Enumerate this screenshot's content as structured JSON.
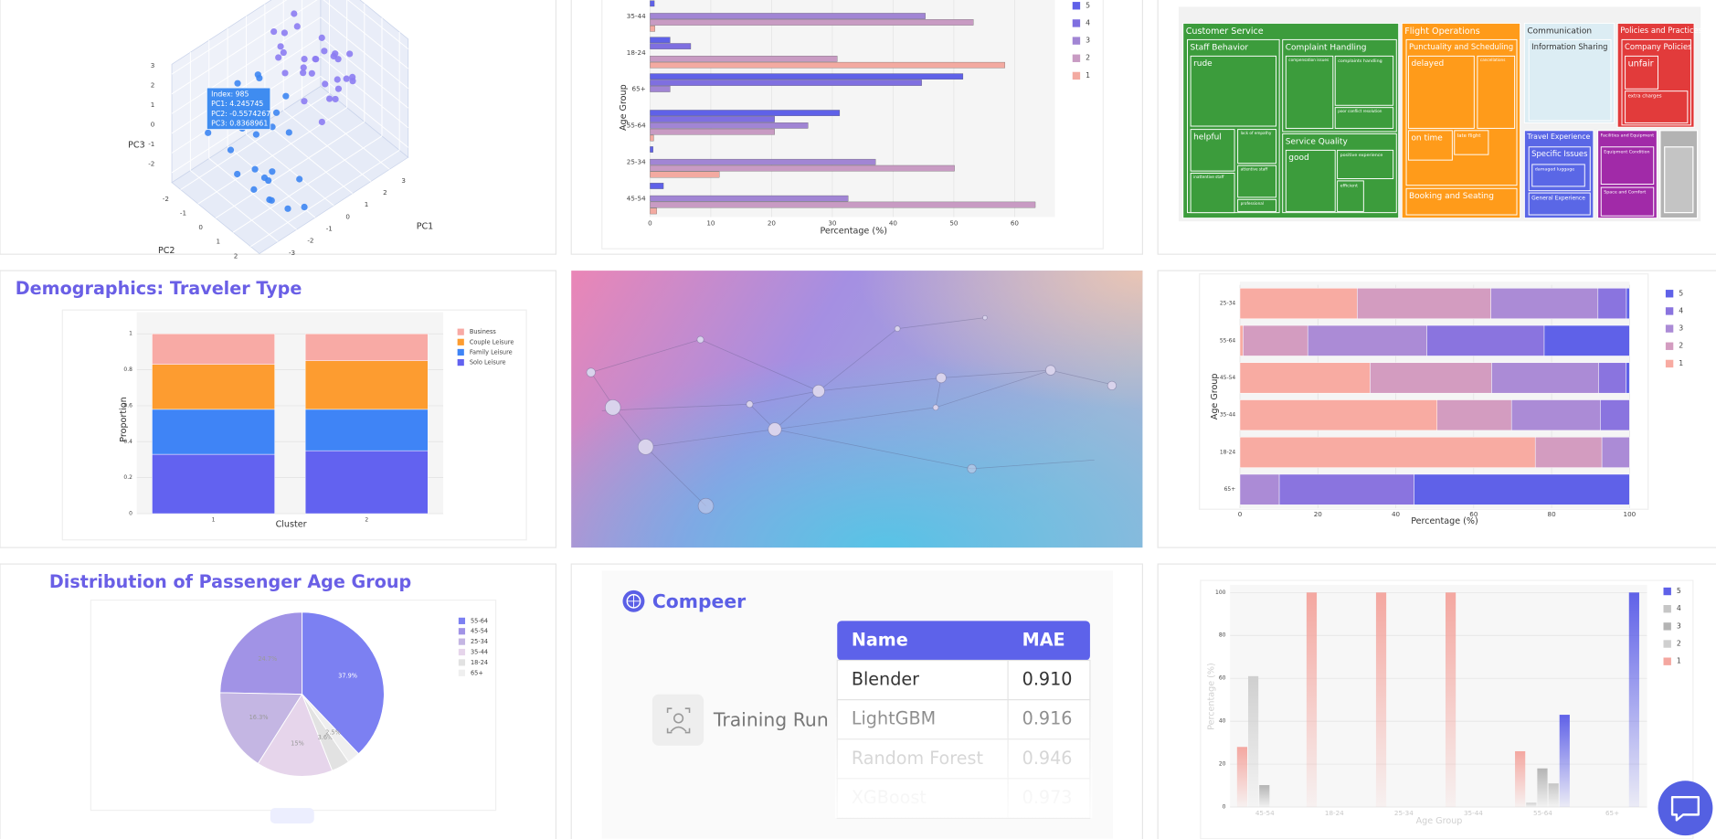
{
  "chart_data": [
    {
      "type": "scatter3d",
      "xlabel": "PC1",
      "ylabel": "PC2",
      "zlabel": "PC3",
      "xlim": [
        -4,
        4
      ],
      "ylim": [
        -2.5,
        2.5
      ],
      "zlim": [
        -2.5,
        3.5
      ],
      "xticks": [
        -3,
        -2,
        -1,
        0,
        1,
        2,
        3
      ],
      "yticks": [
        -2,
        -1,
        0,
        1,
        2
      ],
      "zticks": [
        -2,
        -1,
        0,
        1,
        2,
        3
      ],
      "tooltip": [
        "Index: 985",
        "PC1: 4.245745",
        "PC2: -0.5574267",
        "PC3: 0.8368961"
      ],
      "series": [
        {
          "color": "#3d86f2",
          "x": [
            -2.1,
            -1.8,
            -2.5,
            -1.2,
            -3.0,
            -2.8,
            -1.5,
            -0.9,
            -2.2,
            -1.7,
            -2.6,
            -1.1,
            -3.2,
            -2.0,
            -1.4,
            -0.6,
            -2.9,
            -1.9,
            -2.3,
            -1.0,
            -2.7,
            -1.6,
            -0.8,
            -3.4,
            -2.4,
            -1.3,
            -2.0,
            -1.7,
            -0.5,
            -2.2
          ],
          "y": [
            0.3,
            -0.8,
            1.2,
            0.5,
            -0.2,
            1.8,
            -1.4,
            0.9,
            -1.9,
            0.1,
            0.7,
            -0.5,
            1.4,
            2.0,
            -1.1,
            0.4,
            -1.6,
            1.0,
            -0.3,
            1.6,
            0.2,
            -1.8,
            -0.9,
            0.6,
            1.5,
            2.2,
            -0.6,
            0.8,
            -1.3,
            1.1
          ],
          "z": [
            0.8,
            1.2,
            -0.5,
            1.5,
            0.2,
            -1.0,
            1.8,
            0.6,
            1.0,
            2.1,
            -1.4,
            1.1,
            0.5,
            -1.8,
            1.4,
            1.9,
            0.0,
            -0.7,
            2.4,
            -1.2,
            1.6,
            0.9,
            2.0,
            -0.2,
            -1.5,
            -2.0,
            0.4,
            1.3,
            1.7,
            -0.9
          ]
        },
        {
          "color": "#8c7cf2",
          "x": [
            1.2,
            0.8,
            1.9,
            2.4,
            0.5,
            1.5,
            2.8,
            1.0,
            0.2,
            2.1,
            1.7,
            3.1,
            0.6,
            1.3,
            2.6,
            1.9,
            0.9,
            2.3,
            1.4,
            0.3,
            2.9,
            1.1,
            1.8,
            2.5,
            0.7,
            1.6,
            3.3,
            2.0,
            1.2,
            0.4
          ],
          "y": [
            -0.5,
            0.4,
            -1.2,
            0.2,
            -0.9,
            1.0,
            -0.4,
            -1.6,
            0.6,
            -2.0,
            0.9,
            -0.8,
            -1.3,
            0.1,
            0.8,
            -0.2,
            1.3,
            -1.0,
            -1.8,
            -0.6,
            0.5,
            1.6,
            -1.5,
            -0.7,
            0.0,
            0.3,
            -0.1,
            1.1,
            -2.2,
            1.4
          ],
          "z": [
            1.6,
            2.2,
            1.1,
            1.8,
            2.5,
            0.9,
            1.4,
            2.0,
            1.3,
            2.7,
            1.7,
            0.8,
            1.9,
            2.4,
            1.2,
            2.9,
            1.5,
            1.0,
            2.3,
            1.8,
            0.6,
            2.1,
            2.6,
            1.5,
            2.0,
            1.1,
            1.3,
            1.7,
            2.2,
            0.7
          ]
        }
      ]
    },
    {
      "type": "bar",
      "orientation": "h",
      "barmode": "group",
      "grid": true,
      "xlabel": "Percentage (%)",
      "ylabel": "Age Group",
      "categories": [
        "35-44",
        "18-24",
        "65+",
        "55-64",
        "25-34",
        "45-54"
      ],
      "xlim": [
        0,
        67
      ],
      "xticks": [
        0,
        10,
        20,
        30,
        40,
        50,
        60
      ],
      "series": [
        {
          "name": "5",
          "color": "#5f61e8",
          "values": [
            0.7,
            3.3,
            51.5,
            31.2,
            0.5,
            2.2
          ]
        },
        {
          "name": "4",
          "color": "#7f6fe0",
          "values": [
            0,
            6.7,
            44.7,
            20.5,
            0,
            0
          ]
        },
        {
          "name": "3",
          "color": "#a185d4",
          "values": [
            45.3,
            0,
            3.3,
            26,
            37.1,
            32.6
          ]
        },
        {
          "name": "2",
          "color": "#c89bc3",
          "values": [
            53.2,
            30.8,
            0,
            20.5,
            50.1,
            63.4
          ]
        },
        {
          "name": "1",
          "color": "#f3aaa1",
          "values": [
            0.8,
            58.4,
            0,
            0.6,
            11.4,
            1.1
          ]
        }
      ]
    },
    {
      "type": "bar",
      "orientation": "v",
      "barmode": "stack",
      "grid": true,
      "title": "Demographics: Traveler Type",
      "xlabel": "Cluster",
      "ylabel": "Proportion",
      "categories": [
        "1",
        "2"
      ],
      "ylim": [
        0,
        1.12
      ],
      "yticks": [
        0,
        0.2,
        0.4,
        0.6,
        0.8,
        1
      ],
      "series": [
        {
          "name": "Business",
          "color": "#f8aaa5",
          "values": [
            0.17,
            0.15
          ]
        },
        {
          "name": "Couple Leisure",
          "color": "#fd9c30",
          "values": [
            0.25,
            0.27
          ]
        },
        {
          "name": "Family Leisure",
          "color": "#3f84f6",
          "values": [
            0.25,
            0.23
          ]
        },
        {
          "name": "Solo Leisure",
          "color": "#6262f0",
          "values": [
            0.33,
            0.35
          ]
        }
      ]
    },
    {
      "type": "bar",
      "orientation": "h",
      "barmode": "stack",
      "grid": true,
      "xlabel": "Percentage (%)",
      "ylabel": "Age Group",
      "categories": [
        "25-34",
        "55-64",
        "45-54",
        "35-44",
        "18-24",
        "65+"
      ],
      "xlim": [
        0,
        100
      ],
      "xticks": [
        0,
        20,
        40,
        60,
        80,
        100
      ],
      "series": [
        {
          "name": "5",
          "color": "#5f61e8",
          "values": [
            0.8,
            21.9,
            0.9,
            0,
            0,
            55.3
          ]
        },
        {
          "name": "4",
          "color": "#8a74df",
          "values": [
            7.3,
            30.1,
            7.0,
            7.5,
            0,
            34.6
          ]
        },
        {
          "name": "3",
          "color": "#ab8bd6",
          "values": [
            27.5,
            30.6,
            27.5,
            22.8,
            7.1,
            10.1
          ]
        },
        {
          "name": "2",
          "color": "#d39cc0",
          "values": [
            34.3,
            16.6,
            31.2,
            19.1,
            17.1,
            0
          ]
        },
        {
          "name": "1",
          "color": "#f8aba2",
          "values": [
            30.1,
            0.8,
            33.4,
            50.6,
            75.8,
            0
          ]
        }
      ]
    },
    {
      "type": "pie",
      "title": "Distribution of Passenger Age Group",
      "categories": [
        "55-64",
        "45-54",
        "25-34",
        "35-44",
        "18-24",
        "65+"
      ],
      "values": [
        37.9,
        24.7,
        16.3,
        15,
        3.6,
        2.5
      ],
      "value_labels": [
        "37.9%",
        "24.7%",
        "16.3%",
        "15%",
        "3.6%",
        "2.5%"
      ],
      "colors": [
        "#7c80f2",
        "#a193e6",
        "#c4b6e3",
        "#e6d5eb",
        "#e2e2e2",
        "#efefef"
      ]
    },
    {
      "type": "bar",
      "orientation": "v",
      "barmode": "group",
      "grid": true,
      "fade": true,
      "xlabel": "Age Group",
      "ylabel": "Percentage (%)",
      "categories": [
        "45-54",
        "18-24",
        "25-34",
        "35-44",
        "55-64",
        "65+"
      ],
      "ylim": [
        0,
        103.6
      ],
      "yticks": [
        0,
        20,
        40,
        60,
        80,
        100
      ],
      "series": [
        {
          "name": "5",
          "color": "#5f61e8",
          "values": [
            0,
            0,
            0,
            0,
            43,
            100
          ]
        },
        {
          "name": "4",
          "color": "#c6c6c6",
          "values": [
            0,
            0,
            0,
            0,
            11,
            0
          ]
        },
        {
          "name": "3",
          "color": "#b4b4b4",
          "values": [
            10.2,
            0,
            0,
            0,
            18,
            0
          ]
        },
        {
          "name": "2",
          "color": "#cfcfcf",
          "values": [
            61,
            0,
            0,
            0,
            2,
            0
          ]
        },
        {
          "name": "1",
          "color": "#f4a7a0",
          "values": [
            28,
            100,
            100,
            100,
            26,
            0
          ]
        }
      ]
    }
  ],
  "treemap": {
    "labels": [
      "Customer Service",
      "Staff Behavior",
      "rude",
      "helpful",
      "lack of empathy",
      "inattentive staff",
      "attentive staff",
      "professional",
      "Complaint Handling",
      "compensation issues",
      "complaints handling",
      "poor conflict resolution",
      "Service Quality",
      "good",
      "positive experience",
      "efficient",
      "Flight Operations",
      "Punctuality and Scheduling",
      "delayed",
      "cancellations",
      "on time",
      "late flight",
      "Booking and Seating",
      "Communication",
      "Information Sharing",
      "Policies and Practices",
      "Company Policies",
      "unfair",
      "extra charges",
      "Travel Experience",
      "Specific Issues",
      "damaged luggage",
      "General Experience",
      "Facilities and Equipment",
      "Equipment Condition",
      "Space and Comfort"
    ]
  },
  "compeer": {
    "brand": "Compeer",
    "run_label": "Training Run",
    "table": {
      "header": [
        "Name",
        "MAE"
      ],
      "rows": [
        [
          "Blender",
          "0.910"
        ],
        [
          "LightGBM",
          "0.916"
        ],
        [
          "Random Forest",
          "0.946"
        ],
        [
          "XGBoost",
          "0.973"
        ]
      ]
    }
  }
}
